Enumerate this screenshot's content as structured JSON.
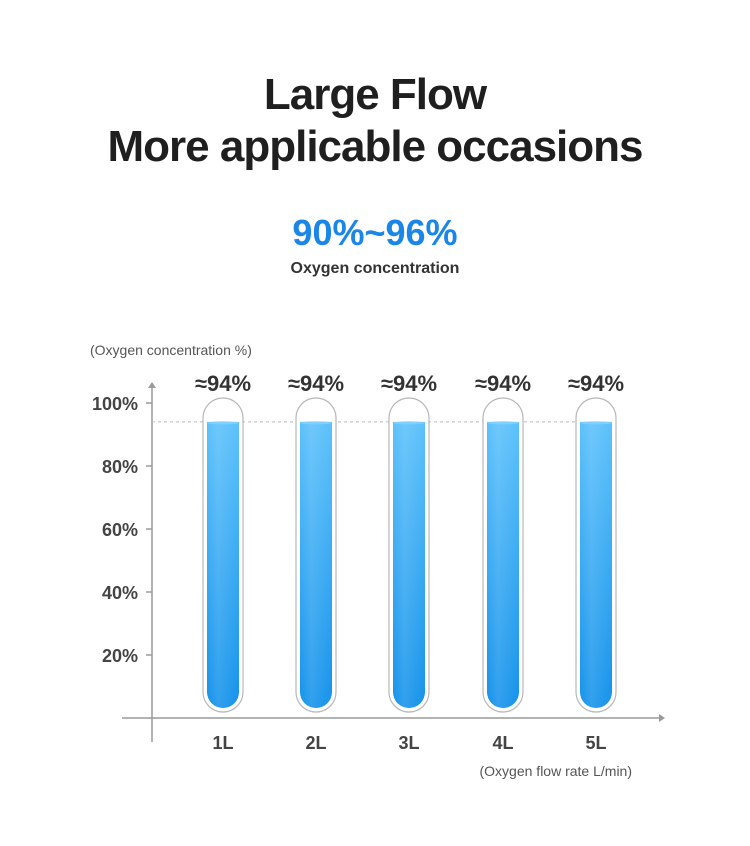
{
  "header": {
    "title_line1": "Large Flow",
    "title_line2": "More applicable occasions",
    "highlight": "90%~96%",
    "highlight_caption": "Oxygen concentration"
  },
  "chart_data": {
    "type": "bar",
    "ylabel": "(Oxygen concentration %)",
    "xlabel": "(Oxygen flow rate L/min)",
    "categories": [
      "1L",
      "2L",
      "3L",
      "4L",
      "5L"
    ],
    "values": [
      94,
      94,
      94,
      94,
      94
    ],
    "data_labels": [
      "≈94%",
      "≈94%",
      "≈94%",
      "≈94%",
      "≈94%"
    ],
    "yticks": [
      20,
      40,
      60,
      80,
      100
    ],
    "ytick_labels": [
      "20%",
      "40%",
      "60%",
      "80%",
      "100%"
    ],
    "ylim": [
      0,
      100
    ],
    "reference_line": 94,
    "grid": false,
    "colors": {
      "bar_top": "#5cc1fb",
      "bar_bottom": "#1592ea",
      "tube_outline": "#b7b7b7",
      "axis": "#9a9a9a",
      "highlight": "#1a87e8"
    }
  }
}
